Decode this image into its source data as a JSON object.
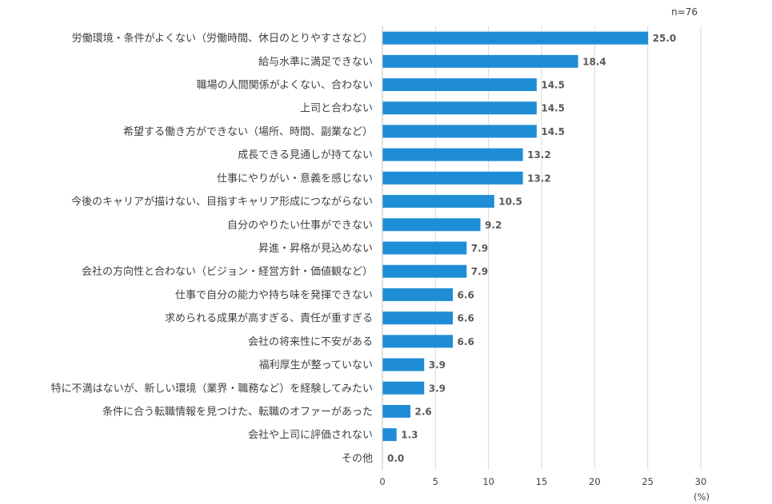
{
  "chart_data": {
    "type": "bar",
    "orientation": "horizontal",
    "sample_note": "n=76",
    "unit_label": "(%)",
    "xlim": [
      0,
      30
    ],
    "xticks": [
      "0",
      "5",
      "10",
      "15",
      "20",
      "25",
      "30"
    ],
    "grid": true,
    "color": "#1f8dd6",
    "categories": [
      "労働環境・条件がよくない（労働時間、休日のとりやすさなど）",
      "給与水準に満足できない",
      "職場の人間関係がよくない、合わない",
      "上司と合わない",
      "希望する働き方ができない（場所、時間、副業など）",
      "成長できる見通しが持てない",
      "仕事にやりがい・意義を感じない",
      "今後のキャリアが描けない、目指すキャリア形成につながらない",
      "自分のやりたい仕事ができない",
      "昇進・昇格が見込めない",
      "会社の方向性と合わない（ビジョン・経営方針・価値観など）",
      "仕事で自分の能力や持ち味を発揮できない",
      "求められる成果が高すぎる、責任が重すぎる",
      "会社の将来性に不安がある",
      "福利厚生が整っていない",
      "特に不満はないが、新しい環境（業界・職務など）を経験してみたい",
      "条件に合う転職情報を見つけた、転職のオファーがあった",
      "会社や上司に評価されない",
      "その他"
    ],
    "values": [
      25.0,
      18.4,
      14.5,
      14.5,
      14.5,
      13.2,
      13.2,
      10.5,
      9.2,
      7.9,
      7.9,
      6.6,
      6.6,
      6.6,
      3.9,
      3.9,
      2.6,
      1.3,
      0.0
    ],
    "value_labels": [
      "25.0",
      "18.4",
      "14.5",
      "14.5",
      "14.5",
      "13.2",
      "13.2",
      "10.5",
      "9.2",
      "7.9",
      "7.9",
      "6.6",
      "6.6",
      "6.6",
      "3.9",
      "3.9",
      "2.6",
      "1.3",
      "0.0"
    ]
  }
}
